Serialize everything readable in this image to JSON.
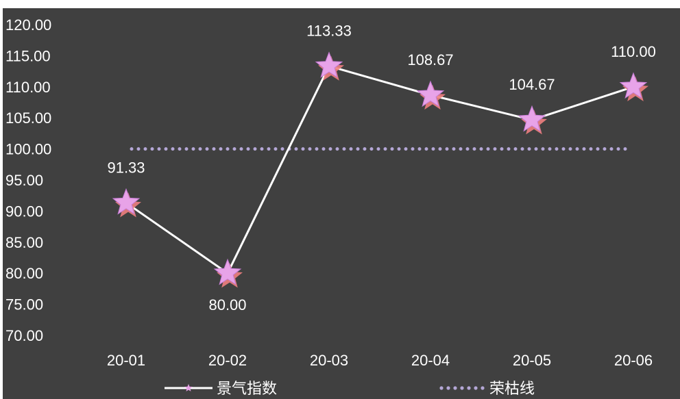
{
  "chart_data": {
    "type": "line",
    "title": "",
    "xlabel": "",
    "ylabel": "",
    "categories": [
      "20-01",
      "20-02",
      "20-03",
      "20-04",
      "20-05",
      "20-06"
    ],
    "ylim": [
      70,
      120
    ],
    "yticks": [
      70,
      75,
      80,
      85,
      90,
      95,
      100,
      105,
      110,
      115,
      120
    ],
    "ytick_labels": [
      "70.00",
      "75.00",
      "80.00",
      "85.00",
      "90.00",
      "95.00",
      "100.00",
      "105.00",
      "110.00",
      "115.00",
      "120.00"
    ],
    "grid": false,
    "legend_position": "bottom",
    "series": [
      {
        "name": "景气指数",
        "values": [
          91.33,
          80.0,
          113.33,
          108.67,
          104.67,
          110.0
        ],
        "data_labels": [
          "91.33",
          "80.00",
          "113.33",
          "108.67",
          "104.67",
          "110.00"
        ],
        "color": "#ffffff",
        "marker": "star",
        "marker_color": "#e8a3e8",
        "marker_shadow_color": "#f08080"
      },
      {
        "name": "荣枯线",
        "values": [
          100,
          100,
          100,
          100,
          100,
          100
        ],
        "color": "#b4a7d6",
        "style": "dotted"
      }
    ]
  }
}
